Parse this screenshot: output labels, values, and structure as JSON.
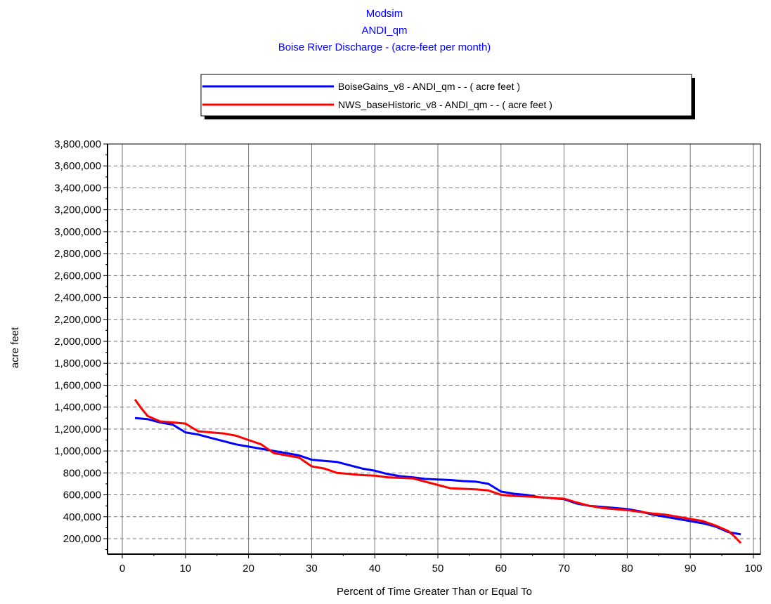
{
  "chart_data": {
    "type": "line",
    "title": [
      "Modsim",
      "ANDI_qm",
      "Boise River Discharge - (acre-feet per month)"
    ],
    "xlabel": "Percent of Time Greater Than or Equal To",
    "ylabel": "acre feet",
    "xlim": [
      0,
      100
    ],
    "ylim": [
      100000,
      3800000
    ],
    "x_ticks": [
      0,
      10,
      20,
      30,
      40,
      50,
      60,
      70,
      80,
      90,
      100
    ],
    "x_tick_labels": [
      "0",
      "10",
      "20",
      "30",
      "40",
      "50",
      "60",
      "70",
      "80",
      "90",
      "100"
    ],
    "y_ticks": [
      200000,
      400000,
      600000,
      800000,
      1000000,
      1200000,
      1400000,
      1600000,
      1800000,
      2000000,
      2200000,
      2400000,
      2600000,
      2800000,
      3000000,
      3200000,
      3400000,
      3600000,
      3800000
    ],
    "y_tick_labels": [
      "200,000",
      "400,000",
      "600,000",
      "800,000",
      "1,000,000",
      "1,200,000",
      "1,400,000",
      "1,600,000",
      "1,800,000",
      "2,000,000",
      "2,200,000",
      "2,400,000",
      "2,600,000",
      "2,800,000",
      "3,000,000",
      "3,200,000",
      "3,400,000",
      "3,600,000",
      "3,800,000"
    ],
    "grid": true,
    "legend_position": "top-center",
    "series": [
      {
        "name": "BoiseGains_v8 - ANDI_qm -  - ( acre feet )",
        "color": "#0000ff",
        "points": [
          [
            2,
            1300000
          ],
          [
            4,
            1290000
          ],
          [
            6,
            1260000
          ],
          [
            8,
            1240000
          ],
          [
            10,
            1170000
          ],
          [
            12,
            1150000
          ],
          [
            14,
            1120000
          ],
          [
            16,
            1090000
          ],
          [
            18,
            1060000
          ],
          [
            20,
            1040000
          ],
          [
            22,
            1020000
          ],
          [
            24,
            1000000
          ],
          [
            26,
            980000
          ],
          [
            28,
            960000
          ],
          [
            30,
            920000
          ],
          [
            32,
            910000
          ],
          [
            34,
            900000
          ],
          [
            36,
            870000
          ],
          [
            38,
            840000
          ],
          [
            40,
            820000
          ],
          [
            42,
            790000
          ],
          [
            44,
            770000
          ],
          [
            46,
            760000
          ],
          [
            48,
            745000
          ],
          [
            50,
            740000
          ],
          [
            52,
            735000
          ],
          [
            54,
            725000
          ],
          [
            56,
            720000
          ],
          [
            58,
            700000
          ],
          [
            60,
            630000
          ],
          [
            62,
            610000
          ],
          [
            64,
            600000
          ],
          [
            66,
            580000
          ],
          [
            68,
            570000
          ],
          [
            70,
            560000
          ],
          [
            72,
            520000
          ],
          [
            74,
            500000
          ],
          [
            76,
            490000
          ],
          [
            78,
            480000
          ],
          [
            80,
            470000
          ],
          [
            82,
            450000
          ],
          [
            84,
            420000
          ],
          [
            86,
            400000
          ],
          [
            88,
            380000
          ],
          [
            90,
            360000
          ],
          [
            92,
            340000
          ],
          [
            94,
            310000
          ],
          [
            96,
            260000
          ],
          [
            97,
            250000
          ],
          [
            98,
            240000
          ]
        ]
      },
      {
        "name": "NWS_baseHistoric_v8 - ANDI_qm -  - ( acre feet )",
        "color": "#ff0000",
        "points": [
          [
            2,
            1470000
          ],
          [
            3,
            1390000
          ],
          [
            4,
            1320000
          ],
          [
            6,
            1270000
          ],
          [
            8,
            1260000
          ],
          [
            10,
            1250000
          ],
          [
            12,
            1180000
          ],
          [
            14,
            1170000
          ],
          [
            16,
            1160000
          ],
          [
            18,
            1140000
          ],
          [
            20,
            1100000
          ],
          [
            22,
            1060000
          ],
          [
            24,
            980000
          ],
          [
            26,
            960000
          ],
          [
            28,
            940000
          ],
          [
            30,
            860000
          ],
          [
            32,
            840000
          ],
          [
            34,
            800000
          ],
          [
            36,
            790000
          ],
          [
            38,
            780000
          ],
          [
            40,
            775000
          ],
          [
            42,
            760000
          ],
          [
            44,
            755000
          ],
          [
            46,
            750000
          ],
          [
            48,
            720000
          ],
          [
            50,
            690000
          ],
          [
            52,
            660000
          ],
          [
            54,
            655000
          ],
          [
            56,
            650000
          ],
          [
            58,
            640000
          ],
          [
            60,
            600000
          ],
          [
            62,
            590000
          ],
          [
            64,
            585000
          ],
          [
            66,
            580000
          ],
          [
            68,
            570000
          ],
          [
            70,
            565000
          ],
          [
            72,
            530000
          ],
          [
            74,
            500000
          ],
          [
            76,
            480000
          ],
          [
            78,
            470000
          ],
          [
            80,
            460000
          ],
          [
            82,
            445000
          ],
          [
            84,
            430000
          ],
          [
            86,
            420000
          ],
          [
            88,
            400000
          ],
          [
            90,
            380000
          ],
          [
            92,
            360000
          ],
          [
            94,
            320000
          ],
          [
            96,
            270000
          ],
          [
            97,
            220000
          ],
          [
            98,
            160000
          ]
        ]
      }
    ]
  }
}
